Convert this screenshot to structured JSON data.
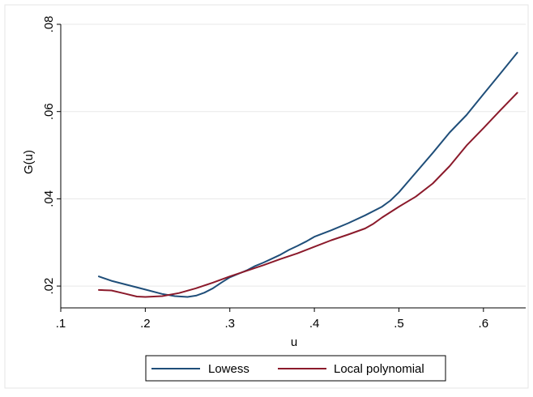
{
  "chart_data": {
    "type": "line",
    "title": "",
    "xlabel": "u",
    "ylabel": "G(u)",
    "xlim": [
      0.1,
      0.65
    ],
    "ylim": [
      0.015,
      0.08
    ],
    "xticks": [
      0.1,
      0.2,
      0.3,
      0.4,
      0.5,
      0.6
    ],
    "xtick_labels": [
      ".1",
      ".2",
      ".3",
      ".4",
      ".5",
      ".6"
    ],
    "yticks": [
      0.02,
      0.04,
      0.06,
      0.08
    ],
    "ytick_labels": [
      ".02",
      ".04",
      ".06",
      ".08"
    ],
    "grid": "horizontal",
    "legend_position": "bottom",
    "series": [
      {
        "name": "Lowess",
        "color": "#1f4e79",
        "x": [
          0.145,
          0.16,
          0.18,
          0.2,
          0.22,
          0.235,
          0.25,
          0.26,
          0.27,
          0.28,
          0.29,
          0.3,
          0.31,
          0.32,
          0.33,
          0.34,
          0.35,
          0.36,
          0.37,
          0.38,
          0.39,
          0.4,
          0.42,
          0.44,
          0.46,
          0.48,
          0.49,
          0.5,
          0.52,
          0.54,
          0.56,
          0.58,
          0.6,
          0.62,
          0.64
        ],
        "y": [
          0.0222,
          0.0212,
          0.0202,
          0.0192,
          0.0182,
          0.0177,
          0.0175,
          0.0178,
          0.0185,
          0.0195,
          0.0208,
          0.022,
          0.0228,
          0.0236,
          0.0246,
          0.0254,
          0.0263,
          0.0272,
          0.0283,
          0.0292,
          0.0302,
          0.0313,
          0.0328,
          0.0344,
          0.0362,
          0.0382,
          0.0396,
          0.0415,
          0.046,
          0.0505,
          0.0552,
          0.0592,
          0.064,
          0.0687,
          0.0735
        ]
      },
      {
        "name": "Local polynomial",
        "color": "#8b1a2b",
        "x": [
          0.145,
          0.16,
          0.175,
          0.19,
          0.2,
          0.22,
          0.24,
          0.26,
          0.28,
          0.3,
          0.32,
          0.34,
          0.36,
          0.38,
          0.4,
          0.42,
          0.44,
          0.46,
          0.47,
          0.48,
          0.5,
          0.52,
          0.54,
          0.56,
          0.58,
          0.6,
          0.62,
          0.64
        ],
        "y": [
          0.0191,
          0.019,
          0.0183,
          0.0176,
          0.0175,
          0.0177,
          0.0184,
          0.0195,
          0.0208,
          0.0222,
          0.0235,
          0.0248,
          0.0262,
          0.0275,
          0.029,
          0.0305,
          0.0318,
          0.0332,
          0.0343,
          0.0357,
          0.0382,
          0.0405,
          0.0435,
          0.0475,
          0.0522,
          0.0562,
          0.0603,
          0.0643
        ]
      }
    ]
  }
}
